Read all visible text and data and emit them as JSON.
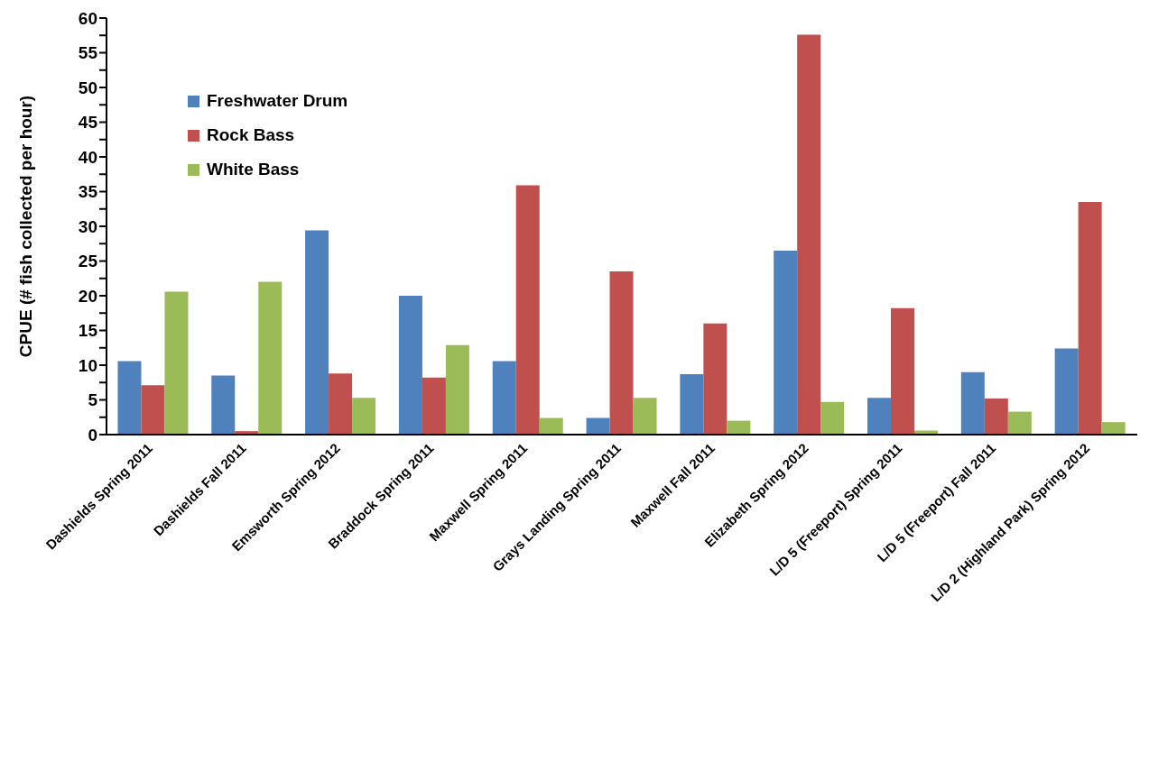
{
  "chart_data": {
    "type": "bar",
    "ylabel": "CPUE  (# fish  collected  per  hour)",
    "categories": [
      "Dashields Spring 2011",
      "Dashields Fall 2011",
      "Emsworth Spring 2012",
      "Braddock Spring 2011",
      "Maxwell Spring 2011",
      "Grays Landing Spring 2011",
      "Maxwell Fall 2011",
      "Elizabeth Spring 2012",
      "L/D 5 (Freeport) Spring 2011",
      "L/D 5 (Freeport) Fall 2011",
      "L/D 2 (Highland Park) Spring 2012"
    ],
    "series": [
      {
        "name": "Freshwater Drum",
        "color": "#4f81bd",
        "values": [
          10.6,
          8.5,
          29.4,
          20.0,
          10.6,
          2.4,
          8.7,
          26.5,
          5.3,
          9.0,
          12.4
        ]
      },
      {
        "name": "Rock Bass",
        "color": "#c0504d",
        "values": [
          7.1,
          0.5,
          8.8,
          8.2,
          35.9,
          23.5,
          16.0,
          57.6,
          18.2,
          5.2,
          33.5
        ]
      },
      {
        "name": "White Bass",
        "color": "#9bbb59",
        "values": [
          20.6,
          22.0,
          5.3,
          12.9,
          2.4,
          5.3,
          2.0,
          4.7,
          0.6,
          3.3,
          1.8
        ]
      }
    ],
    "ylim": [
      0,
      60
    ],
    "yticks": [
      0,
      {
        "value": 2.5,
        "label": null
      },
      5,
      {
        "value": 7.5,
        "label": null
      },
      10,
      {
        "value": 12.5,
        "label": null
      },
      15,
      {
        "value": 17.5,
        "label": null
      },
      20,
      {
        "value": 22.5,
        "label": null
      },
      25,
      {
        "value": 27.5,
        "label": null
      },
      30,
      {
        "value": 32.5,
        "label": null
      },
      35,
      {
        "value": 37.5,
        "label": null
      },
      40,
      {
        "value": 42.5,
        "label": null
      },
      45,
      {
        "value": 47.5,
        "label": null
      },
      50,
      {
        "value": 52.5,
        "label": null
      },
      55,
      {
        "value": 57.5,
        "label": null
      },
      60
    ],
    "grid": false,
    "legend": "top left"
  }
}
